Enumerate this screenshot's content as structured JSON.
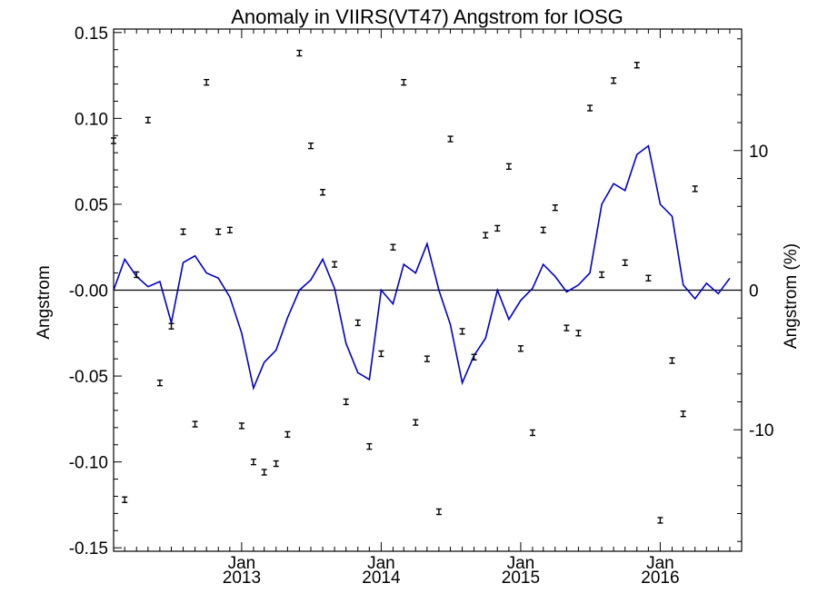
{
  "chart_data": {
    "type": "line",
    "title": "Anomaly in VIIRS(VT47) Angstrom for IOSG",
    "ylabel": "Angstrom",
    "y2label": "Angstrom (%)",
    "xlabel": "",
    "xlim": [
      "2012-02-01",
      "2016-08-01"
    ],
    "ylim": [
      -0.152,
      0.152
    ],
    "y2lim": [
      -18.7,
      18.7
    ],
    "yticks": [
      "0.15",
      "0.10",
      "0.05",
      "-0.00",
      "-0.05",
      "-0.10",
      "-0.15"
    ],
    "y2ticks": [
      "10",
      "0",
      "-10"
    ],
    "xticks": [
      {
        "month": "Jan",
        "year": "2013",
        "date": "2013-01-01"
      },
      {
        "month": "Jan",
        "year": "2014",
        "date": "2014-01-01"
      },
      {
        "month": "Jan",
        "year": "2015",
        "date": "2015-01-01"
      },
      {
        "month": "Jan",
        "year": "2016",
        "date": "2016-01-01"
      }
    ],
    "grid": false,
    "reference_line": 0,
    "line_color": "#0000cc",
    "marker_color": "#000000",
    "series": [
      {
        "style": "line",
        "axis": "left",
        "values": [
          {
            "x": "2012-02-01",
            "y": 0.0
          },
          {
            "x": "2012-03-01",
            "y": 0.018
          },
          {
            "x": "2012-04-01",
            "y": 0.008
          },
          {
            "x": "2012-05-01",
            "y": 0.002
          },
          {
            "x": "2012-06-01",
            "y": 0.005
          },
          {
            "x": "2012-07-01",
            "y": -0.019
          },
          {
            "x": "2012-08-01",
            "y": 0.016
          },
          {
            "x": "2012-09-01",
            "y": 0.02
          },
          {
            "x": "2012-10-01",
            "y": 0.01
          },
          {
            "x": "2012-11-01",
            "y": 0.007
          },
          {
            "x": "2012-12-01",
            "y": -0.004
          },
          {
            "x": "2013-01-01",
            "y": -0.025
          },
          {
            "x": "2013-02-01",
            "y": -0.057
          },
          {
            "x": "2013-03-01",
            "y": -0.042
          },
          {
            "x": "2013-04-01",
            "y": -0.035
          },
          {
            "x": "2013-05-01",
            "y": -0.016
          },
          {
            "x": "2013-06-01",
            "y": 0.0
          },
          {
            "x": "2013-07-01",
            "y": 0.006
          },
          {
            "x": "2013-08-01",
            "y": 0.018
          },
          {
            "x": "2013-09-01",
            "y": 0.001
          },
          {
            "x": "2013-10-01",
            "y": -0.031
          },
          {
            "x": "2013-11-01",
            "y": -0.048
          },
          {
            "x": "2013-12-01",
            "y": -0.052
          },
          {
            "x": "2014-01-01",
            "y": 0.0
          },
          {
            "x": "2014-02-01",
            "y": -0.008
          },
          {
            "x": "2014-03-01",
            "y": 0.015
          },
          {
            "x": "2014-04-01",
            "y": 0.01
          },
          {
            "x": "2014-05-01",
            "y": 0.027
          },
          {
            "x": "2014-06-01",
            "y": 0.0
          },
          {
            "x": "2014-07-01",
            "y": -0.02
          },
          {
            "x": "2014-08-01",
            "y": -0.054
          },
          {
            "x": "2014-09-01",
            "y": -0.038
          },
          {
            "x": "2014-10-01",
            "y": -0.028
          },
          {
            "x": "2014-11-01",
            "y": 0.0
          },
          {
            "x": "2014-12-01",
            "y": -0.017
          },
          {
            "x": "2015-01-01",
            "y": -0.006
          },
          {
            "x": "2015-02-01",
            "y": 0.001
          },
          {
            "x": "2015-03-01",
            "y": 0.015
          },
          {
            "x": "2015-04-01",
            "y": 0.008
          },
          {
            "x": "2015-05-01",
            "y": -0.001
          },
          {
            "x": "2015-06-01",
            "y": 0.003
          },
          {
            "x": "2015-07-01",
            "y": 0.01
          },
          {
            "x": "2015-08-01",
            "y": 0.05
          },
          {
            "x": "2015-09-01",
            "y": 0.062
          },
          {
            "x": "2015-10-01",
            "y": 0.058
          },
          {
            "x": "2015-11-01",
            "y": 0.079
          },
          {
            "x": "2015-12-01",
            "y": 0.084
          },
          {
            "x": "2016-01-01",
            "y": 0.05
          },
          {
            "x": "2016-02-01",
            "y": 0.043
          },
          {
            "x": "2016-03-01",
            "y": 0.003
          },
          {
            "x": "2016-04-01",
            "y": -0.005
          },
          {
            "x": "2016-05-01",
            "y": 0.004
          },
          {
            "x": "2016-06-01",
            "y": -0.002
          },
          {
            "x": "2016-07-01",
            "y": 0.007
          }
        ]
      },
      {
        "style": "errorbar",
        "axis": "left",
        "values": [
          {
            "x": "2012-02-01",
            "y": 0.087
          },
          {
            "x": "2012-03-01",
            "y": -0.122
          },
          {
            "x": "2012-04-01",
            "y": 0.009
          },
          {
            "x": "2012-05-01",
            "y": 0.099
          },
          {
            "x": "2012-06-01",
            "y": -0.054
          },
          {
            "x": "2012-07-01",
            "y": -0.021
          },
          {
            "x": "2012-08-01",
            "y": 0.034
          },
          {
            "x": "2012-09-01",
            "y": -0.078
          },
          {
            "x": "2012-10-01",
            "y": 0.121
          },
          {
            "x": "2012-11-01",
            "y": 0.034
          },
          {
            "x": "2012-12-01",
            "y": 0.035
          },
          {
            "x": "2013-01-01",
            "y": -0.079
          },
          {
            "x": "2013-02-01",
            "y": -0.1
          },
          {
            "x": "2013-03-01",
            "y": -0.106
          },
          {
            "x": "2013-04-01",
            "y": -0.101
          },
          {
            "x": "2013-05-01",
            "y": -0.084
          },
          {
            "x": "2013-06-01",
            "y": 0.138
          },
          {
            "x": "2013-07-01",
            "y": 0.084
          },
          {
            "x": "2013-08-01",
            "y": 0.057
          },
          {
            "x": "2013-09-01",
            "y": 0.015
          },
          {
            "x": "2013-10-01",
            "y": -0.065
          },
          {
            "x": "2013-11-01",
            "y": -0.019
          },
          {
            "x": "2013-12-01",
            "y": -0.091
          },
          {
            "x": "2014-01-01",
            "y": -0.037
          },
          {
            "x": "2014-02-01",
            "y": 0.025
          },
          {
            "x": "2014-03-01",
            "y": 0.121
          },
          {
            "x": "2014-04-01",
            "y": -0.077
          },
          {
            "x": "2014-05-01",
            "y": -0.04
          },
          {
            "x": "2014-06-01",
            "y": -0.129
          },
          {
            "x": "2014-07-01",
            "y": 0.088
          },
          {
            "x": "2014-08-01",
            "y": -0.024
          },
          {
            "x": "2014-09-01",
            "y": -0.039
          },
          {
            "x": "2014-10-01",
            "y": 0.032
          },
          {
            "x": "2014-11-01",
            "y": 0.036
          },
          {
            "x": "2014-12-01",
            "y": 0.072
          },
          {
            "x": "2015-01-01",
            "y": -0.034
          },
          {
            "x": "2015-02-01",
            "y": -0.083
          },
          {
            "x": "2015-03-01",
            "y": 0.035
          },
          {
            "x": "2015-04-01",
            "y": 0.048
          },
          {
            "x": "2015-05-01",
            "y": -0.022
          },
          {
            "x": "2015-06-01",
            "y": -0.025
          },
          {
            "x": "2015-07-01",
            "y": 0.106
          },
          {
            "x": "2015-08-01",
            "y": 0.009
          },
          {
            "x": "2015-09-01",
            "y": 0.122
          },
          {
            "x": "2015-10-01",
            "y": 0.016
          },
          {
            "x": "2015-11-01",
            "y": 0.131
          },
          {
            "x": "2015-12-01",
            "y": 0.007
          },
          {
            "x": "2016-01-01",
            "y": -0.134
          },
          {
            "x": "2016-02-01",
            "y": -0.041
          },
          {
            "x": "2016-03-01",
            "y": -0.072
          },
          {
            "x": "2016-04-01",
            "y": 0.059
          }
        ]
      }
    ]
  }
}
